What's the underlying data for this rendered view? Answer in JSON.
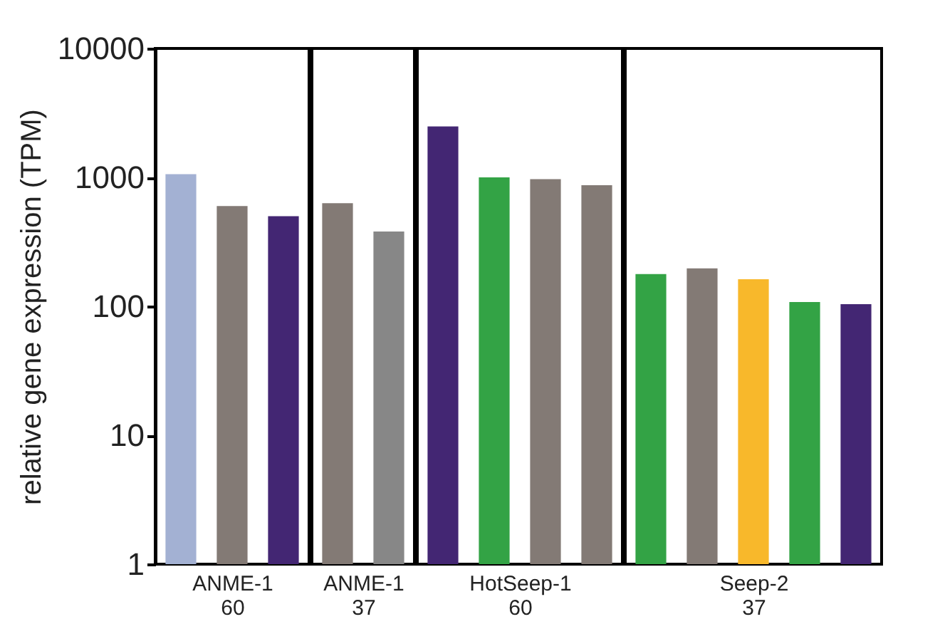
{
  "chart_data": [
    {
      "type": "bar",
      "categories": [
        null,
        null,
        null
      ],
      "values": [
        1060,
        600,
        500
      ],
      "colors": [
        "#a3b1d3",
        "#837a75",
        "#432673"
      ],
      "ylabel": "relative gene expression (TPM)",
      "xlabel": "ANME-1\n60",
      "ylim": [
        1,
        10000
      ],
      "yticks": [
        1,
        10,
        100,
        1000,
        10000
      ],
      "log": true,
      "grid": false,
      "tick_labels": "y"
    },
    {
      "type": "bar",
      "categories": [
        null,
        null
      ],
      "values": [
        630,
        380
      ],
      "colors": [
        "#837a75",
        "#878787"
      ],
      "xlabel": "ANME-1\n37",
      "ylim": [
        1,
        10000
      ],
      "log": true,
      "grid": false,
      "tick_labels": false
    },
    {
      "type": "bar",
      "categories": [
        null,
        null,
        null,
        null
      ],
      "values": [
        2480,
        1000,
        970,
        870
      ],
      "colors": [
        "#432673",
        "#33a345",
        "#837a75",
        "#837a75"
      ],
      "xlabel": "HotSeep-1\n60",
      "ylim": [
        1,
        10000
      ],
      "log": true,
      "grid": false,
      "tick_labels": false
    },
    {
      "type": "bar",
      "categories": [
        null,
        null,
        null,
        null,
        null
      ],
      "values": [
        178,
        197,
        162,
        108,
        104
      ],
      "colors": [
        "#33a345",
        "#837a75",
        "#f8b82b",
        "#33a345",
        "#432673"
      ],
      "xlabel": "Seep-2\n37",
      "ylim": [
        1,
        10000
      ],
      "log": true,
      "grid": false,
      "tick_labels": false
    }
  ]
}
